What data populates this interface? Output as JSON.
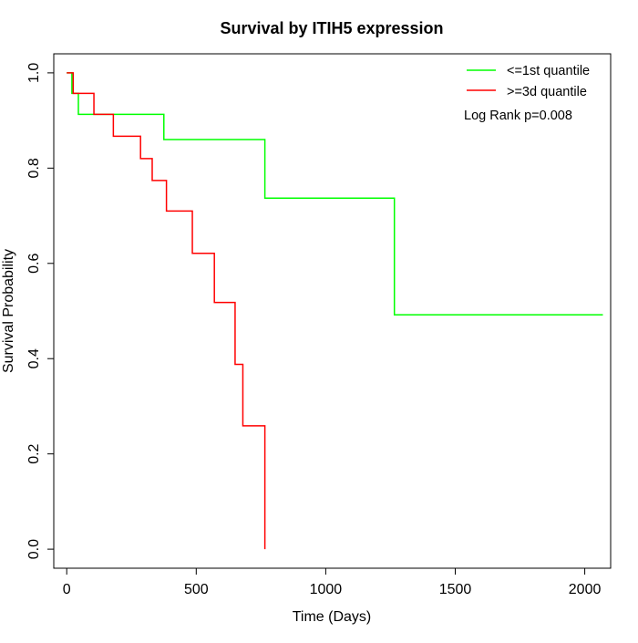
{
  "chart_data": {
    "type": "line",
    "title": "Survival by ITIH5 expression",
    "xlabel": "Time (Days)",
    "ylabel": "Survival Probability",
    "xlim": [
      -50,
      2100
    ],
    "ylim": [
      -0.04,
      1.04
    ],
    "x_ticks": [
      0,
      500,
      1000,
      1500,
      2000
    ],
    "x_tick_labels": [
      "0",
      "500",
      "1000",
      "1500",
      "2000"
    ],
    "y_ticks": [
      0.0,
      0.2,
      0.4,
      0.6,
      0.8,
      1.0
    ],
    "y_tick_labels": [
      "0.0",
      "0.2",
      "0.4",
      "0.6",
      "0.8",
      "1.0"
    ],
    "grid": false,
    "legend_position": "top-right",
    "annotation": "Log Rank p=0.008",
    "series": [
      {
        "name": "<=1st quantile",
        "color": "#00ff00",
        "step": true,
        "x": [
          0,
          20,
          45,
          375,
          765,
          1265,
          2070
        ],
        "y": [
          1.0,
          0.957,
          0.913,
          0.86,
          0.737,
          0.492,
          0.492
        ]
      },
      {
        "name": ">=3d quantile",
        "color": "#ff0000",
        "step": true,
        "x": [
          0,
          25,
          105,
          180,
          285,
          330,
          385,
          485,
          570,
          650,
          680,
          765
        ],
        "y": [
          1.0,
          0.957,
          0.913,
          0.867,
          0.82,
          0.774,
          0.71,
          0.621,
          0.518,
          0.388,
          0.259,
          0.0
        ]
      }
    ]
  }
}
